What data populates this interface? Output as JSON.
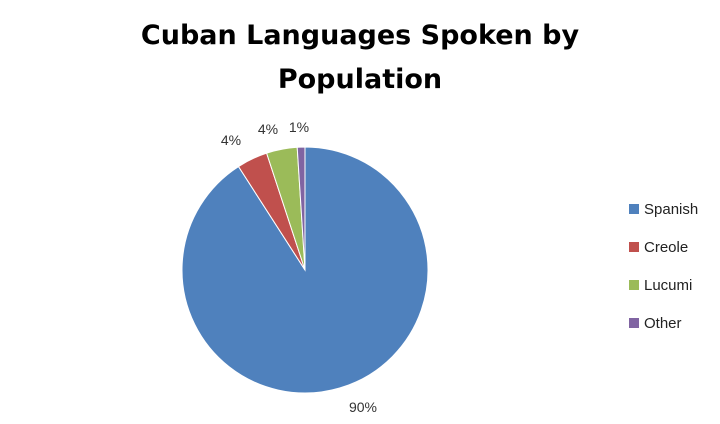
{
  "chart_data": {
    "type": "pie",
    "title_lines": [
      "Cuban Languages Spoken by",
      "Population"
    ],
    "categories": [
      "Spanish",
      "Creole",
      "Lucumi",
      "Other"
    ],
    "values": [
      90,
      4,
      4,
      1
    ],
    "data_labels": [
      "90%",
      "4%",
      "4%",
      "1%"
    ],
    "colors": [
      "#4F81BD",
      "#C0504D",
      "#9BBB59",
      "#8064A2"
    ],
    "legend": {
      "position": "right",
      "entries": [
        "Spanish",
        "Creole",
        "Lucumi",
        "Other"
      ]
    },
    "start_angle": "12 o'clock",
    "direction": "clockwise"
  }
}
